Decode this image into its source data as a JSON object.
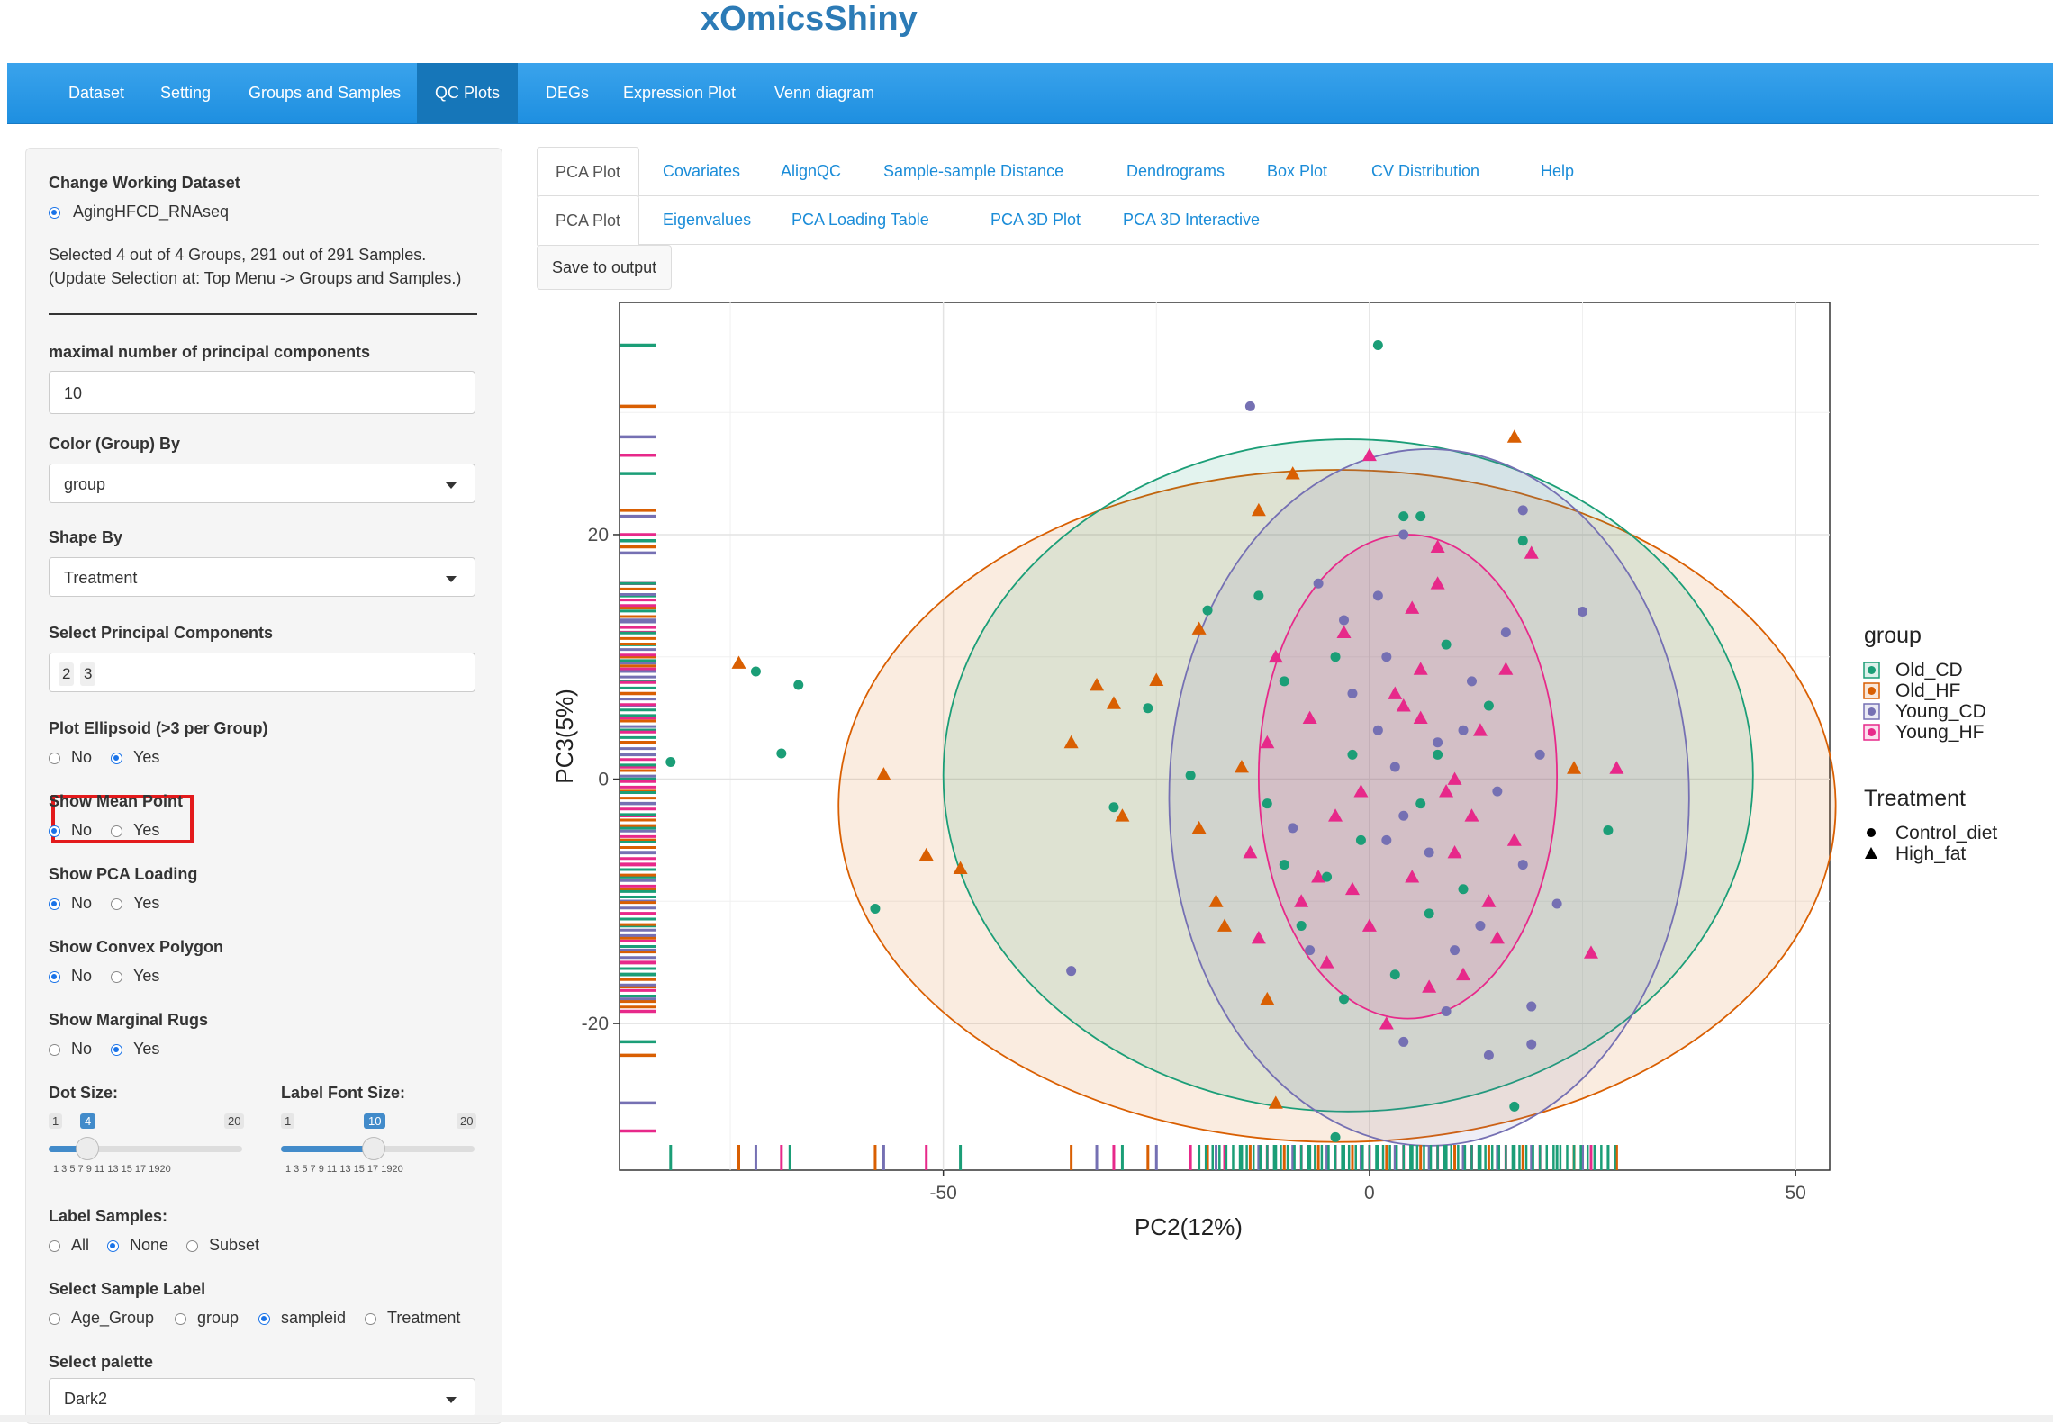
{
  "app": {
    "title": "xOmicsShiny"
  },
  "nav": [
    {
      "label": "Dataset"
    },
    {
      "label": "Setting"
    },
    {
      "label": "Groups and Samples"
    },
    {
      "label": "QC Plots",
      "active": true
    },
    {
      "label": "DEGs"
    },
    {
      "label": "Expression Plot"
    },
    {
      "label": "Venn diagram"
    }
  ],
  "sidebar": {
    "change_dataset_label": "Change Working Dataset",
    "dataset_option": "AgingHFCD_RNAseq",
    "selection_info_1": "Selected 4 out of 4 Groups, 291 out of 291 Samples.",
    "selection_info_2": "(Update Selection at: Top Menu -> Groups and Samples.)",
    "max_pc_label": "maximal number of principal components",
    "max_pc_value": "10",
    "color_by_label": "Color (Group) By",
    "color_by_value": "group",
    "shape_by_label": "Shape By",
    "shape_by_value": "Treatment",
    "select_pc_label": "Select Principal Components",
    "select_pc_values": [
      "2",
      "3"
    ],
    "ellipse_label": "Plot Ellipsoid (>3 per Group)",
    "mean_label": "Show Mean Point",
    "loading_label": "Show PCA Loading",
    "convex_label": "Show Convex Polygon",
    "rugs_label": "Show Marginal Rugs",
    "no": "No",
    "yes": "Yes",
    "ellipse_selected": "Yes",
    "mean_selected": "No",
    "loading_selected": "No",
    "convex_selected": "No",
    "rugs_selected": "Yes",
    "dot_size_label": "Dot Size:",
    "dot_size": {
      "min": "1",
      "max": "20",
      "value": "4",
      "fraction": 0.158
    },
    "label_font_label": "Label Font Size:",
    "label_font": {
      "min": "1",
      "max": "20",
      "value": "10",
      "fraction": 0.474
    },
    "slider_ticks": "1  3  5  7  9  11 13 15 17 1920",
    "label_samples_label": "Label Samples:",
    "label_samples_options": [
      "All",
      "None",
      "Subset"
    ],
    "label_samples_selected": "None",
    "sample_label_label": "Select Sample Label",
    "sample_label_options": [
      "Age_Group",
      "group",
      "sampleid",
      "Treatment"
    ],
    "sample_label_selected": "sampleid",
    "palette_label": "Select palette",
    "palette_value": "Dark2"
  },
  "tabs_main": [
    {
      "label": "PCA Plot",
      "active": true
    },
    {
      "label": "Covariates"
    },
    {
      "label": "AlignQC"
    },
    {
      "label": "Sample-sample Distance"
    },
    {
      "label": "Dendrograms"
    },
    {
      "label": "Box Plot"
    },
    {
      "label": "CV Distribution"
    },
    {
      "label": "Help"
    }
  ],
  "tabs_sub": [
    {
      "label": "PCA Plot",
      "active": true
    },
    {
      "label": "Eigenvalues"
    },
    {
      "label": "PCA Loading Table"
    },
    {
      "label": "PCA 3D Plot"
    },
    {
      "label": "PCA 3D Interactive"
    }
  ],
  "save_button": "Save to output",
  "chart_data": {
    "type": "scatter",
    "xlabel": "PC2(12%)",
    "ylabel": "PC3(5%)",
    "xlim": [
      -88,
      54
    ],
    "ylim": [
      -32,
      39
    ],
    "xticks": [
      -50,
      0,
      50
    ],
    "yticks": [
      -20,
      0,
      20
    ],
    "grid": true,
    "legend_position": "right",
    "legend_color_title": "group",
    "legend_shape_title": "Treatment",
    "groups": [
      {
        "name": "Old_CD",
        "color": "#1b9e77"
      },
      {
        "name": "Old_HF",
        "color": "#d95f02"
      },
      {
        "name": "Young_CD",
        "color": "#7570b3"
      },
      {
        "name": "Young_HF",
        "color": "#e7298a"
      }
    ],
    "shapes": [
      {
        "name": "Control_diet",
        "shape": "circle"
      },
      {
        "name": "High_fat",
        "shape": "triangle"
      }
    ],
    "ellipses": [
      {
        "group": "Old_CD",
        "cx": -2.5,
        "cy": 0.3,
        "rx": 47.5,
        "ry": 27.5
      },
      {
        "group": "Old_HF",
        "cx": -3.8,
        "cy": -2.2,
        "rx": 58.5,
        "ry": 27.5
      },
      {
        "group": "Young_CD",
        "cx": 7.0,
        "cy": -1.5,
        "rx": 30.5,
        "ry": 28.5
      },
      {
        "group": "Young_HF",
        "cx": 4.5,
        "cy": 0.2,
        "rx": 17.5,
        "ry": 19.8
      }
    ],
    "points": [
      {
        "g": "Old_CD",
        "s": "Control_diet",
        "x": 1,
        "y": 35.5
      },
      {
        "g": "Young_CD",
        "s": "Control_diet",
        "x": -14,
        "y": 30.5
      },
      {
        "g": "Old_HF",
        "s": "High_fat",
        "x": 17,
        "y": 28
      },
      {
        "g": "Young_HF",
        "s": "High_fat",
        "x": 0,
        "y": 26.5
      },
      {
        "g": "Old_HF",
        "s": "High_fat",
        "x": -9,
        "y": 25
      },
      {
        "g": "Old_HF",
        "s": "High_fat",
        "x": -13,
        "y": 22
      },
      {
        "g": "Old_CD",
        "s": "Control_diet",
        "x": 4,
        "y": 21.5
      },
      {
        "g": "Old_CD",
        "s": "Control_diet",
        "x": 6,
        "y": 21.5
      },
      {
        "g": "Young_CD",
        "s": "Control_diet",
        "x": 18,
        "y": 22
      },
      {
        "g": "Young_CD",
        "s": "Control_diet",
        "x": 4,
        "y": 20
      },
      {
        "g": "Old_CD",
        "s": "Control_diet",
        "x": 18,
        "y": 19.5
      },
      {
        "g": "Young_HF",
        "s": "High_fat",
        "x": 8,
        "y": 19
      },
      {
        "g": "Young_HF",
        "s": "High_fat",
        "x": 19,
        "y": 18.5
      },
      {
        "g": "Old_CD",
        "s": "Control_diet",
        "x": -13,
        "y": 15
      },
      {
        "g": "Old_CD",
        "s": "Control_diet",
        "x": -19,
        "y": 13.8
      },
      {
        "g": "Old_HF",
        "s": "High_fat",
        "x": -20,
        "y": 12.3
      },
      {
        "g": "Young_CD",
        "s": "Control_diet",
        "x": 25,
        "y": 13.7
      },
      {
        "g": "Old_HF",
        "s": "High_fat",
        "x": -74,
        "y": 9.5
      },
      {
        "g": "Old_CD",
        "s": "Control_diet",
        "x": -72,
        "y": 8.8
      },
      {
        "g": "Old_CD",
        "s": "Control_diet",
        "x": -67,
        "y": 7.7
      },
      {
        "g": "Old_HF",
        "s": "High_fat",
        "x": -32,
        "y": 7.7
      },
      {
        "g": "Old_HF",
        "s": "High_fat",
        "x": -25,
        "y": 8.1
      },
      {
        "g": "Old_HF",
        "s": "High_fat",
        "x": -30,
        "y": 6.2
      },
      {
        "g": "Old_CD",
        "s": "Control_diet",
        "x": -26,
        "y": 5.8
      },
      {
        "g": "Old_CD",
        "s": "Control_diet",
        "x": -82,
        "y": 1.4
      },
      {
        "g": "Old_CD",
        "s": "Control_diet",
        "x": -69,
        "y": 2.1
      },
      {
        "g": "Old_HF",
        "s": "High_fat",
        "x": -35,
        "y": 3.0
      },
      {
        "g": "Old_HF",
        "s": "High_fat",
        "x": -57,
        "y": 0.4
      },
      {
        "g": "Old_CD",
        "s": "Control_diet",
        "x": -30,
        "y": -2.3
      },
      {
        "g": "Old_HF",
        "s": "High_fat",
        "x": -29,
        "y": -3.0
      },
      {
        "g": "Old_HF",
        "s": "High_fat",
        "x": -52,
        "y": -6.2
      },
      {
        "g": "Old_HF",
        "s": "High_fat",
        "x": -48,
        "y": -7.3
      },
      {
        "g": "Old_CD",
        "s": "Control_diet",
        "x": -58,
        "y": -10.6
      },
      {
        "g": "Young_CD",
        "s": "Control_diet",
        "x": -35,
        "y": -15.7
      },
      {
        "g": "Old_HF",
        "s": "High_fat",
        "x": -11,
        "y": -26.5
      },
      {
        "g": "Old_CD",
        "s": "Control_diet",
        "x": -4,
        "y": -29.3
      },
      {
        "g": "Old_CD",
        "s": "Control_diet",
        "x": 17,
        "y": -26.8
      },
      {
        "g": "Young_CD",
        "s": "Control_diet",
        "x": 14,
        "y": -22.6
      },
      {
        "g": "Young_CD",
        "s": "Control_diet",
        "x": 19,
        "y": -21.7
      },
      {
        "g": "Young_CD",
        "s": "Control_diet",
        "x": 4,
        "y": -21.5
      },
      {
        "g": "Young_CD",
        "s": "Control_diet",
        "x": 19,
        "y": -18.6
      },
      {
        "g": "Old_CD",
        "s": "Control_diet",
        "x": 28,
        "y": -4.2
      },
      {
        "g": "Old_HF",
        "s": "High_fat",
        "x": 24,
        "y": 0.9
      },
      {
        "g": "Young_HF",
        "s": "High_fat",
        "x": 29,
        "y": 0.9
      },
      {
        "g": "Young_CD",
        "s": "Control_diet",
        "x": 22,
        "y": -10.2
      },
      {
        "g": "Young_HF",
        "s": "High_fat",
        "x": 26,
        "y": -14.2
      },
      {
        "g": "Old_HF",
        "s": "High_fat",
        "x": -17,
        "y": -12
      },
      {
        "g": "Old_HF",
        "s": "High_fat",
        "x": -12,
        "y": -18
      },
      {
        "g": "Old_CD",
        "s": "Control_diet",
        "x": -8,
        "y": -12
      },
      {
        "g": "Young_HF",
        "s": "High_fat",
        "x": -6,
        "y": -8
      },
      {
        "g": "Young_HF",
        "s": "High_fat",
        "x": -4,
        "y": -3
      },
      {
        "g": "Old_CD",
        "s": "Control_diet",
        "x": -2,
        "y": 2
      },
      {
        "g": "Young_CD",
        "s": "Control_diet",
        "x": 2,
        "y": -5
      },
      {
        "g": "Young_HF",
        "s": "High_fat",
        "x": 4,
        "y": 6
      },
      {
        "g": "Old_CD",
        "s": "Control_diet",
        "x": 6,
        "y": -2
      },
      {
        "g": "Young_CD",
        "s": "Control_diet",
        "x": 8,
        "y": 3
      },
      {
        "g": "Young_HF",
        "s": "High_fat",
        "x": 10,
        "y": -6
      },
      {
        "g": "Young_CD",
        "s": "Control_diet",
        "x": 12,
        "y": 8
      },
      {
        "g": "Young_HF",
        "s": "High_fat",
        "x": 14,
        "y": -10
      },
      {
        "g": "Old_CD",
        "s": "Control_diet",
        "x": -10,
        "y": 8
      },
      {
        "g": "Young_HF",
        "s": "High_fat",
        "x": -12,
        "y": 3
      },
      {
        "g": "Young_CD",
        "s": "Control_diet",
        "x": -7,
        "y": -14
      },
      {
        "g": "Young_HF",
        "s": "High_fat",
        "x": 0,
        "y": -12
      },
      {
        "g": "Old_CD",
        "s": "Control_diet",
        "x": 3,
        "y": -16
      },
      {
        "g": "Young_HF",
        "s": "High_fat",
        "x": 7,
        "y": -17
      },
      {
        "g": "Young_CD",
        "s": "Control_diet",
        "x": 10,
        "y": -14
      },
      {
        "g": "Young_HF",
        "s": "High_fat",
        "x": -3,
        "y": 12
      },
      {
        "g": "Young_CD",
        "s": "Control_diet",
        "x": 1,
        "y": 15
      },
      {
        "g": "Young_HF",
        "s": "High_fat",
        "x": 5,
        "y": 14
      },
      {
        "g": "Old_CD",
        "s": "Control_diet",
        "x": 9,
        "y": 11
      },
      {
        "g": "Young_HF",
        "s": "High_fat",
        "x": 13,
        "y": 4
      },
      {
        "g": "Young_CD",
        "s": "Control_diet",
        "x": 15,
        "y": -1
      },
      {
        "g": "Young_HF",
        "s": "High_fat",
        "x": 17,
        "y": -5
      },
      {
        "g": "Old_CD",
        "s": "Control_diet",
        "x": -5,
        "y": -8
      },
      {
        "g": "Young_HF",
        "s": "High_fat",
        "x": -1,
        "y": -1
      },
      {
        "g": "Young_CD",
        "s": "Control_diet",
        "x": 3,
        "y": 1
      },
      {
        "g": "Young_HF",
        "s": "High_fat",
        "x": 6,
        "y": 9
      },
      {
        "g": "Young_CD",
        "s": "Control_diet",
        "x": -9,
        "y": -4
      },
      {
        "g": "Old_CD",
        "s": "Control_diet",
        "x": 11,
        "y": -9
      },
      {
        "g": "Young_HF",
        "s": "High_fat",
        "x": -14,
        "y": -6
      },
      {
        "g": "Young_CD",
        "s": "Control_diet",
        "x": 16,
        "y": 12
      },
      {
        "g": "Young_HF",
        "s": "High_fat",
        "x": 2,
        "y": -20
      },
      {
        "g": "Old_CD",
        "s": "Control_diet",
        "x": -3,
        "y": -18
      },
      {
        "g": "Young_HF",
        "s": "High_fat",
        "x": 8,
        "y": 16
      },
      {
        "g": "Young_CD",
        "s": "Control_diet",
        "x": -6,
        "y": 16
      },
      {
        "g": "Young_HF",
        "s": "High_fat",
        "x": 12,
        "y": -3
      },
      {
        "g": "Old_CD",
        "s": "Control_diet",
        "x": 14,
        "y": 6
      },
      {
        "g": "Young_CD",
        "s": "Control_diet",
        "x": 20,
        "y": 2
      },
      {
        "g": "Young_HF",
        "s": "High_fat",
        "x": -11,
        "y": 10
      },
      {
        "g": "Young_CD",
        "s": "Control_diet",
        "x": -2,
        "y": 7
      },
      {
        "g": "Young_HF",
        "s": "High_fat",
        "x": 5,
        "y": -8
      },
      {
        "g": "Old_CD",
        "s": "Control_diet",
        "x": 7,
        "y": -11
      },
      {
        "g": "Young_CD",
        "s": "Control_diet",
        "x": 9,
        "y": -19
      },
      {
        "g": "Young_HF",
        "s": "High_fat",
        "x": -8,
        "y": -10
      },
      {
        "g": "Old_HF",
        "s": "High_fat",
        "x": -15,
        "y": 1
      },
      {
        "g": "Young_HF",
        "s": "High_fat",
        "x": -13,
        "y": -13
      },
      {
        "g": "Young_CD",
        "s": "Control_diet",
        "x": 18,
        "y": -7
      },
      {
        "g": "Young_HF",
        "s": "High_fat",
        "x": 16,
        "y": 9
      },
      {
        "g": "Old_CD",
        "s": "Control_diet",
        "x": -1,
        "y": -5
      },
      {
        "g": "Young_CD",
        "s": "Control_diet",
        "x": 1,
        "y": 4
      },
      {
        "g": "Young_HF",
        "s": "High_fat",
        "x": 10,
        "y": 0
      },
      {
        "g": "Old_CD",
        "s": "Control_diet",
        "x": -4,
        "y": 10
      },
      {
        "g": "Young_CD",
        "s": "Control_diet",
        "x": 4,
        "y": -3
      },
      {
        "g": "Young_HF",
        "s": "High_fat",
        "x": -7,
        "y": 5
      },
      {
        "g": "Old_HF",
        "s": "High_fat",
        "x": -20,
        "y": -4
      },
      {
        "g": "Old_CD",
        "s": "Control_diet",
        "x": -21,
        "y": 0.3
      },
      {
        "g": "Young_HF",
        "s": "High_fat",
        "x": 11,
        "y": -16
      },
      {
        "g": "Young_CD",
        "s": "Control_diet",
        "x": 13,
        "y": -12
      },
      {
        "g": "Young_HF",
        "s": "High_fat",
        "x": 6,
        "y": 5
      },
      {
        "g": "Old_CD",
        "s": "Control_diet",
        "x": -10,
        "y": -7
      },
      {
        "g": "Young_CD",
        "s": "Control_diet",
        "x": 2,
        "y": 10
      },
      {
        "g": "Young_HF",
        "s": "High_fat",
        "x": -5,
        "y": -15
      },
      {
        "g": "Old_HF",
        "s": "High_fat",
        "x": -18,
        "y": -10
      },
      {
        "g": "Young_CD",
        "s": "Control_diet",
        "x": 7,
        "y": -6
      },
      {
        "g": "Young_HF",
        "s": "High_fat",
        "x": 3,
        "y": 7
      },
      {
        "g": "Old_CD",
        "s": "Control_diet",
        "x": 8,
        "y": 2
      },
      {
        "g": "Young_HF",
        "s": "High_fat",
        "x": -2,
        "y": -9
      },
      {
        "g": "Young_CD",
        "s": "Control_diet",
        "x": 11,
        "y": 4
      },
      {
        "g": "Young_HF",
        "s": "High_fat",
        "x": 15,
        "y": -13
      },
      {
        "g": "Old_CD",
        "s": "Control_diet",
        "x": -12,
        "y": -2
      },
      {
        "g": "Young_CD",
        "s": "Control_diet",
        "x": -3,
        "y": 13
      },
      {
        "g": "Young_HF",
        "s": "High_fat",
        "x": 9,
        "y": -1
      }
    ],
    "rug_x": [
      -82,
      -74,
      -72,
      -69,
      -68,
      -58,
      -57,
      -52,
      -48,
      -35,
      -32,
      -30,
      -29,
      -26,
      -25,
      -21,
      -20,
      -19,
      -18,
      -17,
      -15,
      -14,
      -13,
      -12,
      -11,
      -10,
      -9,
      -8,
      -7,
      -6,
      -5,
      -4,
      -3,
      -2,
      -1,
      0,
      1,
      2,
      3,
      4,
      5,
      6,
      7,
      8,
      9,
      10,
      11,
      12,
      13,
      14,
      15,
      16,
      17,
      18,
      19,
      20,
      22,
      24,
      25,
      26,
      28,
      29
    ],
    "rug_y": [
      35.5,
      30.5,
      28,
      26.5,
      25,
      22,
      21.5,
      20,
      19.5,
      19,
      18.5,
      16,
      15,
      14,
      13,
      12,
      11,
      10,
      9.5,
      9,
      8,
      7,
      6,
      5,
      4,
      3,
      2,
      1,
      0,
      -1,
      -2,
      -3,
      -4,
      -5,
      -6,
      -7,
      -8,
      -9,
      -10,
      -11,
      -12,
      -13,
      -14,
      -15,
      -16,
      -17,
      -18,
      -19,
      -21.5,
      -22.6,
      -26.5,
      -28.8
    ]
  }
}
